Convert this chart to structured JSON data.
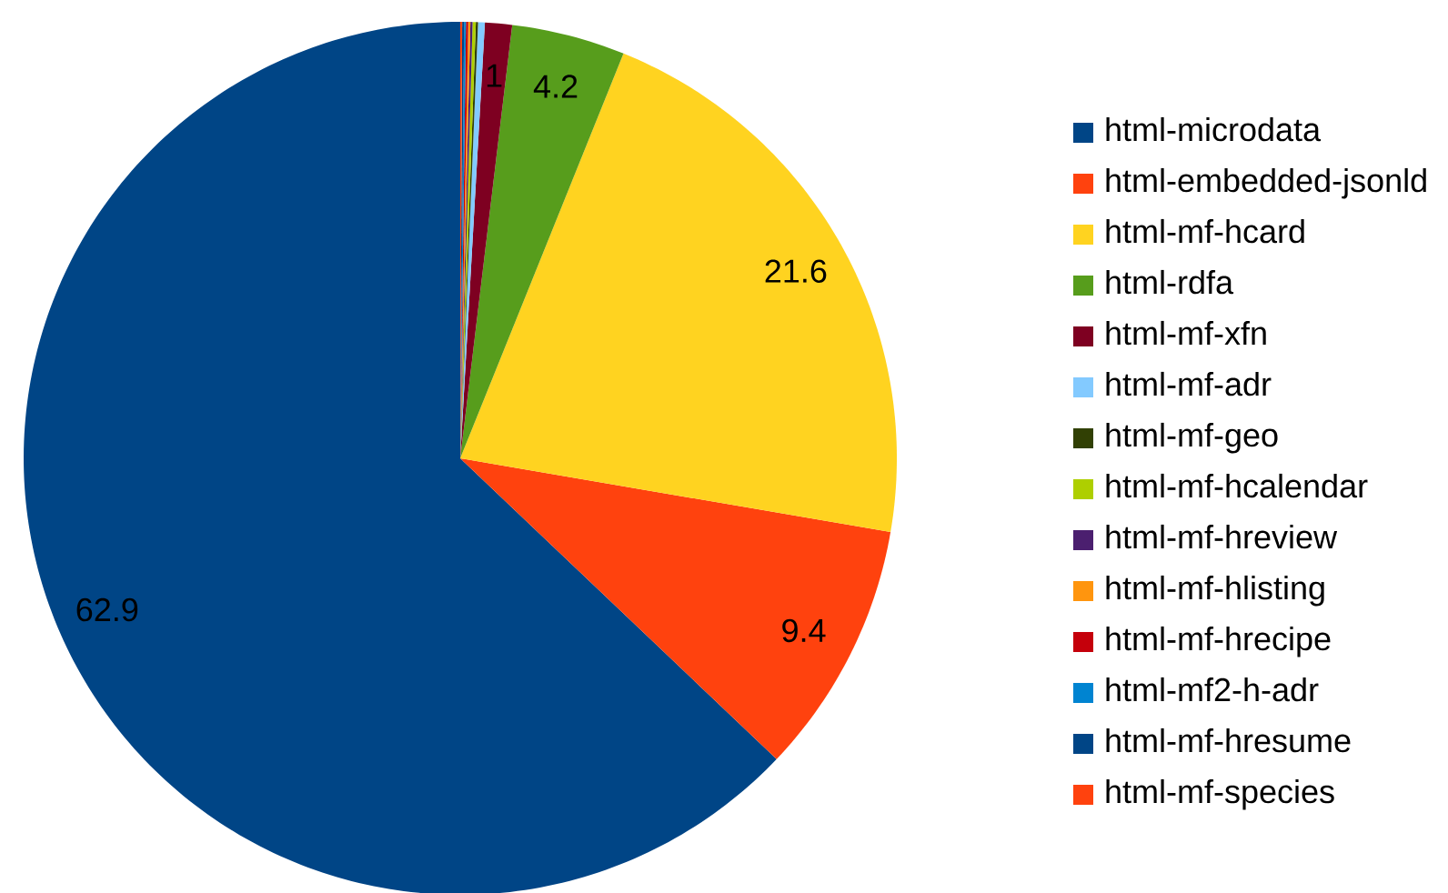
{
  "chart_data": {
    "type": "pie",
    "categories": [
      "html-microdata",
      "html-embedded-jsonld",
      "html-mf-hcard",
      "html-rdfa",
      "html-mf-xfn",
      "html-mf-adr",
      "html-mf-geo",
      "html-mf-hcalendar",
      "html-mf-hreview",
      "html-mf-hlisting",
      "html-mf-hrecipe",
      "html-mf2-h-adr",
      "html-mf-hresume",
      "html-mf-species"
    ],
    "values": [
      62.9,
      9.4,
      21.6,
      4.2,
      1,
      0.25,
      0.08,
      0.12,
      0.08,
      0.08,
      0.08,
      0.07,
      0.07,
      0.07
    ],
    "colors": [
      "#004586",
      "#ff420e",
      "#ffd320",
      "#579d1c",
      "#7e0021",
      "#83caff",
      "#314004",
      "#aecf00",
      "#4b1f6f",
      "#ff950e",
      "#c5000b",
      "#0084d1",
      "#004586",
      "#ff420e"
    ],
    "value_labels": [
      "62.9",
      "9.4",
      "21.6",
      "4.2",
      "1",
      null,
      null,
      null,
      null,
      null,
      null,
      null,
      null,
      null
    ],
    "legend": "right"
  }
}
